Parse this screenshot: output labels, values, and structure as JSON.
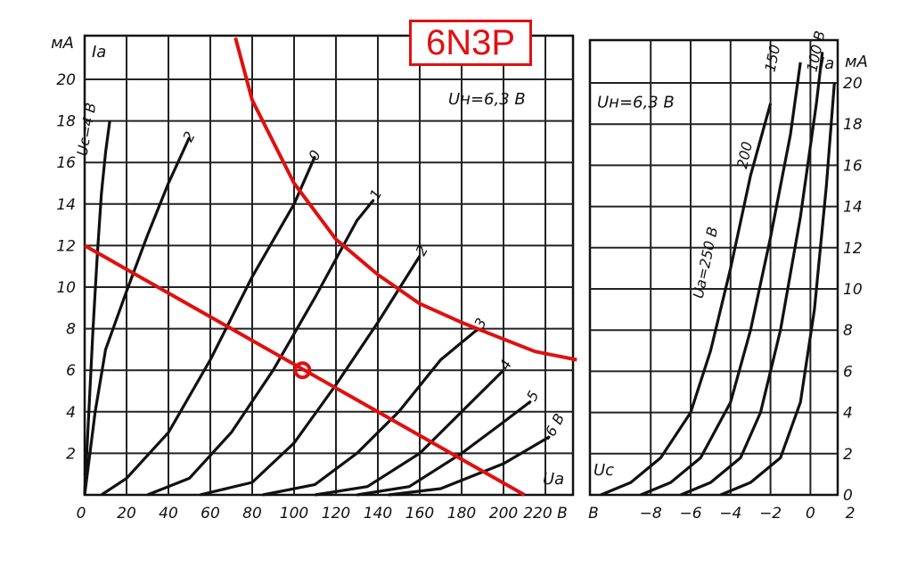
{
  "chart_data": [
    {
      "type": "line",
      "title": "6N3P",
      "panel": "anode characteristics Ia(Ua)",
      "ylabel": "Ia",
      "yunit": "мА",
      "xlabel": "Ua",
      "xlim": [
        0,
        240
      ],
      "ylim": [
        0,
        22
      ],
      "grid": true,
      "x_ticks": [
        "0",
        "20",
        "40",
        "60",
        "80",
        "100",
        "120",
        "140",
        "160",
        "180",
        "200",
        "220 В"
      ],
      "y_ticks": [
        "2",
        "4",
        "6",
        "8",
        "10",
        "12",
        "14",
        "16",
        "18",
        "20"
      ],
      "annotations": [
        "Uн=6,3 В",
        "Uс=4 В"
      ],
      "series": [
        {
          "name": "Uс=4 В",
          "points": [
            [
              0,
              0
            ],
            [
              2,
              4
            ],
            [
              4,
              8
            ],
            [
              6,
              11.5
            ],
            [
              8,
              14.5
            ],
            [
              10,
              16.5
            ],
            [
              12,
              18
            ]
          ]
        },
        {
          "name": "2",
          "points": [
            [
              0,
              0
            ],
            [
              5,
              4
            ],
            [
              10,
              7
            ],
            [
              20,
              9.8
            ],
            [
              30,
              12.5
            ],
            [
              40,
              15
            ],
            [
              50,
              17.2
            ]
          ]
        },
        {
          "name": "0",
          "points": [
            [
              8,
              0
            ],
            [
              20,
              0.8
            ],
            [
              40,
              3
            ],
            [
              60,
              6.5
            ],
            [
              80,
              10.5
            ],
            [
              100,
              14
            ],
            [
              110,
              16.3
            ]
          ]
        },
        {
          "name": "-1",
          "points": [
            [
              30,
              0
            ],
            [
              50,
              0.8
            ],
            [
              70,
              3
            ],
            [
              90,
              6
            ],
            [
              110,
              9.5
            ],
            [
              130,
              13.2
            ],
            [
              138,
              14.2
            ]
          ]
        },
        {
          "name": "-2",
          "points": [
            [
              55,
              0
            ],
            [
              80,
              0.6
            ],
            [
              100,
              2.5
            ],
            [
              120,
              5.3
            ],
            [
              140,
              8.3
            ],
            [
              160,
              11.5
            ]
          ]
        },
        {
          "name": "-3",
          "points": [
            [
              85,
              0
            ],
            [
              110,
              0.5
            ],
            [
              130,
              2
            ],
            [
              150,
              4
            ],
            [
              170,
              6.5
            ],
            [
              188,
              8
            ]
          ]
        },
        {
          "name": "-4",
          "points": [
            [
              110,
              0
            ],
            [
              135,
              0.4
            ],
            [
              160,
              2
            ],
            [
              180,
              4
            ],
            [
              200,
              6
            ]
          ]
        },
        {
          "name": "-5",
          "points": [
            [
              130,
              0
            ],
            [
              155,
              0.4
            ],
            [
              180,
              2
            ],
            [
              200,
              3.5
            ],
            [
              213,
              4.5
            ]
          ]
        },
        {
          "name": "-6 В",
          "points": [
            [
              145,
              0
            ],
            [
              170,
              0.3
            ],
            [
              200,
              1.5
            ],
            [
              222,
              2.8
            ]
          ]
        }
      ],
      "overlay_lines": [
        {
          "name": "max-dissipation",
          "color": "#e01010",
          "points": [
            [
              72,
              22
            ],
            [
              80,
              19
            ],
            [
              100,
              15
            ],
            [
              120,
              12.3
            ],
            [
              140,
              10.6
            ],
            [
              160,
              9.2
            ],
            [
              180,
              8.3
            ],
            [
              200,
              7.5
            ],
            [
              215,
              6.9
            ],
            [
              235,
              6.5
            ]
          ]
        },
        {
          "name": "load-line",
          "color": "#e01010",
          "points": [
            [
              0,
              12
            ],
            [
              210,
              0
            ]
          ]
        }
      ],
      "operating_point": {
        "x": 104,
        "y": 6,
        "color": "#e01010"
      }
    },
    {
      "type": "line",
      "panel": "transfer characteristics Ia(Uc)",
      "ylabel": "Ia",
      "yunit": "мА",
      "xlabel": "Uс",
      "xlim": [
        -11,
        2
      ],
      "ylim": [
        0,
        22
      ],
      "grid": true,
      "x_ticks": [
        "В",
        "−8",
        "−6",
        "−4",
        "−2",
        "0",
        "2"
      ],
      "y_ticks": [
        "0",
        "2",
        "4",
        "6",
        "8",
        "10",
        "12",
        "14",
        "16",
        "18",
        "20"
      ],
      "annotations": [
        "Uн=6,3 В"
      ],
      "series": [
        {
          "name": "Uа=250 В",
          "points": [
            [
              -10.5,
              0
            ],
            [
              -9,
              0.6
            ],
            [
              -7.5,
              1.8
            ],
            [
              -6,
              4
            ],
            [
              -5,
              7
            ],
            [
              -4,
              11
            ],
            [
              -3,
              15.5
            ],
            [
              -2,
              19
            ]
          ]
        },
        {
          "name": "200",
          "points": [
            [
              -8.5,
              0
            ],
            [
              -7,
              0.6
            ],
            [
              -5.5,
              1.8
            ],
            [
              -4,
              4.5
            ],
            [
              -3,
              8
            ],
            [
              -2,
              12.5
            ],
            [
              -1,
              17.5
            ],
            [
              -0.5,
              21
            ]
          ]
        },
        {
          "name": "150",
          "points": [
            [
              -6.5,
              0
            ],
            [
              -5,
              0.6
            ],
            [
              -3.5,
              1.8
            ],
            [
              -2.5,
              4
            ],
            [
              -1.5,
              8
            ],
            [
              -0.5,
              13.5
            ],
            [
              0.3,
              19
            ],
            [
              0.6,
              21.5
            ]
          ]
        },
        {
          "name": "100 В",
          "points": [
            [
              -4.5,
              0
            ],
            [
              -3,
              0.6
            ],
            [
              -1.5,
              1.8
            ],
            [
              -0.5,
              4.5
            ],
            [
              0.2,
              9
            ],
            [
              0.8,
              15
            ],
            [
              1.2,
              20
            ]
          ]
        }
      ]
    }
  ]
}
